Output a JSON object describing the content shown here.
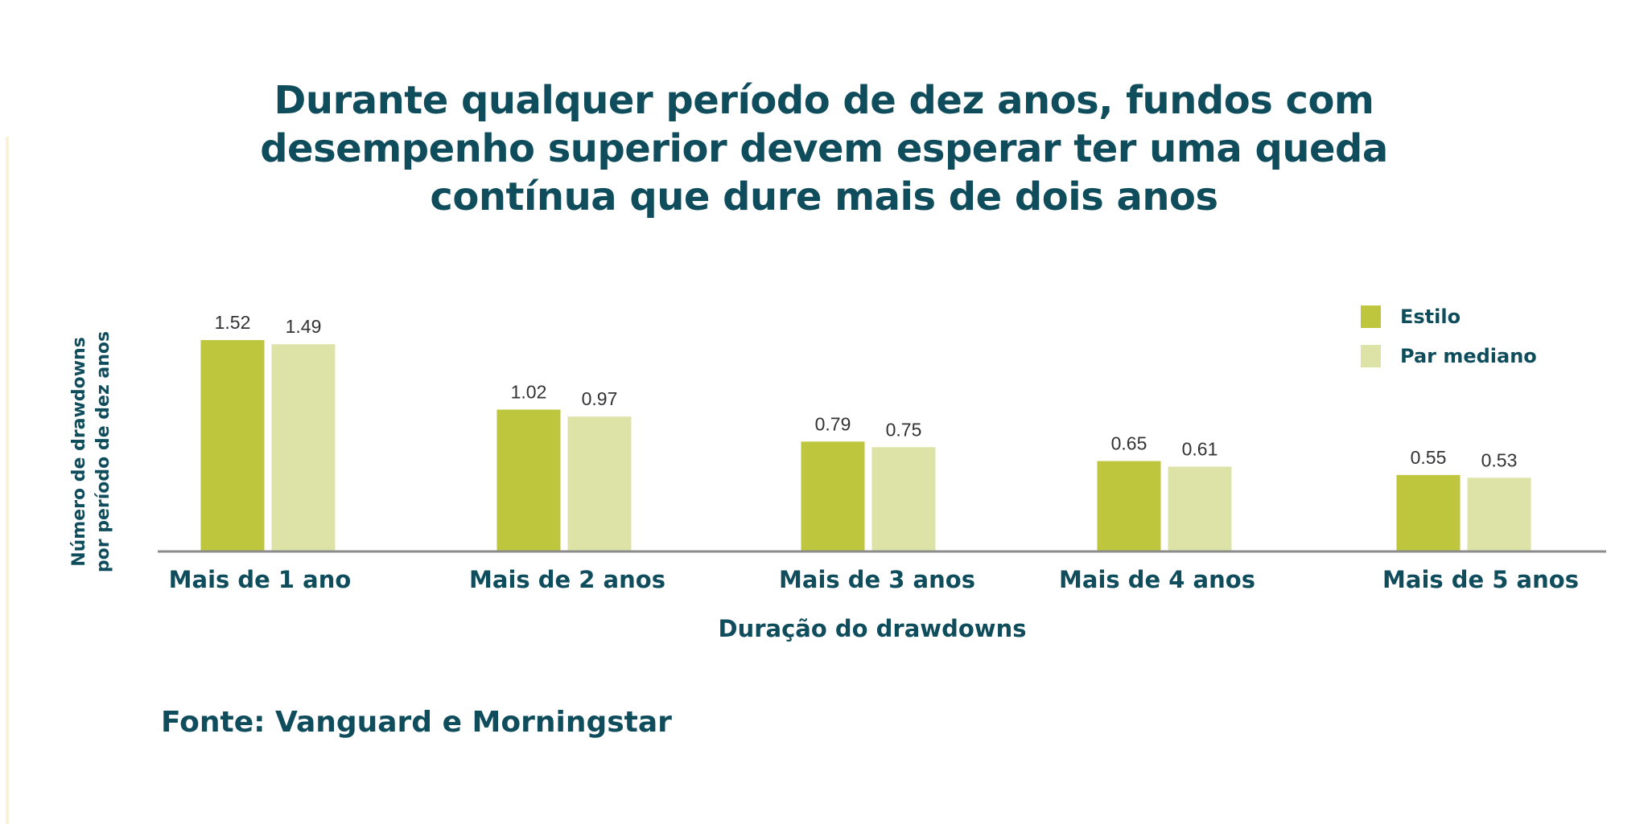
{
  "title_lines": [
    "Durante qualquer período de dez anos, fundos com",
    "desempenho superior devem esperar ter uma queda",
    "contínua que dure mais de dois anos"
  ],
  "source": "Fonte: Vanguard e Morningstar",
  "colors": {
    "estilo": "#bdc63d",
    "par": "#dde3a7",
    "text": "#0f4d5c",
    "axis": "#8c8c8c",
    "value_label": "#333333"
  },
  "chart_data": {
    "type": "bar",
    "title": "Durante qualquer período de dez anos, fundos com desempenho superior devem esperar ter uma queda contínua que dure mais de dois anos",
    "categories": [
      "Mais de 1 ano",
      "Mais de 2 anos",
      "Mais de 3 anos",
      "Mais de 4 anos",
      "Mais de 5 anos"
    ],
    "series": [
      {
        "name": "Estilo",
        "values": [
          1.52,
          1.02,
          0.79,
          0.65,
          0.55
        ]
      },
      {
        "name": "Par mediano",
        "values": [
          1.49,
          0.97,
          0.75,
          0.61,
          0.53
        ]
      }
    ],
    "xlabel": "Duração do drawdowns",
    "ylabel_lines": [
      "Número de drawdowns",
      "por período de dez anos"
    ],
    "ylim": [
      0,
      1.6
    ],
    "grid": false,
    "legend": "top-right"
  }
}
